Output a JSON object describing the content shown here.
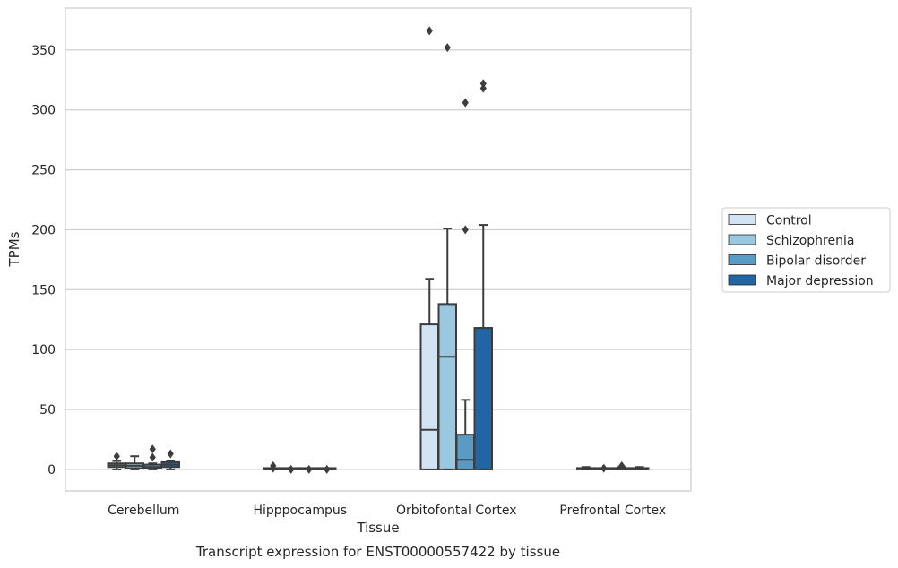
{
  "chart_data": {
    "type": "box",
    "title": "",
    "caption": "Transcript expression for ENST00000557422 by tissue",
    "xlabel": "Tissue",
    "ylabel": "TPMs",
    "ylim": [
      -18,
      385
    ],
    "yticks": [
      0,
      50,
      100,
      150,
      200,
      250,
      300,
      350
    ],
    "grid": "horizontal",
    "legend_position": "right",
    "categories": [
      "Cerebellum",
      "Hipppocampus",
      "Orbitofontal Cortex",
      "Prefrontal Cortex"
    ],
    "series": [
      {
        "name": "Control",
        "color": "#d2e3f3",
        "boxes": [
          {
            "q1": 2,
            "median": 3.5,
            "q3": 5,
            "whisker_low": 0,
            "whisker_high": 7,
            "outliers": [
              11
            ]
          },
          {
            "q1": 0,
            "median": 0,
            "q3": 0,
            "whisker_low": 0,
            "whisker_high": 0,
            "outliers": [
              1,
              3
            ]
          },
          {
            "q1": 0,
            "median": 33,
            "q3": 121,
            "whisker_low": 0,
            "whisker_high": 159,
            "outliers": [
              366
            ]
          },
          {
            "q1": 0,
            "median": 0.5,
            "q3": 1,
            "whisker_low": 0,
            "whisker_high": 2,
            "outliers": []
          }
        ]
      },
      {
        "name": "Schizophrenia",
        "color": "#9ac8e0",
        "boxes": [
          {
            "q1": 1,
            "median": 3,
            "q3": 5,
            "whisker_low": 0,
            "whisker_high": 11,
            "outliers": []
          },
          {
            "q1": 0,
            "median": 0,
            "q3": 0,
            "whisker_low": 0,
            "whisker_high": 0,
            "outliers": [
              0
            ]
          },
          {
            "q1": 0,
            "median": 94,
            "q3": 138,
            "whisker_low": 0,
            "whisker_high": 201,
            "outliers": [
              352
            ]
          },
          {
            "q1": 0,
            "median": 0,
            "q3": 1,
            "whisker_low": 0,
            "whisker_high": 1,
            "outliers": [
              1
            ]
          }
        ]
      },
      {
        "name": "Bipolar disorder",
        "color": "#5a9bc6",
        "boxes": [
          {
            "q1": 1,
            "median": 2,
            "q3": 4,
            "whisker_low": 0,
            "whisker_high": 5,
            "outliers": [
              10,
              17
            ]
          },
          {
            "q1": 0,
            "median": 0,
            "q3": 0,
            "whisker_low": 0,
            "whisker_high": 0,
            "outliers": [
              0
            ]
          },
          {
            "q1": 0,
            "median": 8,
            "q3": 29,
            "whisker_low": 0,
            "whisker_high": 58,
            "outliers": [
              200,
              306
            ]
          },
          {
            "q1": 0,
            "median": 0,
            "q3": 1,
            "whisker_low": 0,
            "whisker_high": 2,
            "outliers": [
              3
            ]
          }
        ]
      },
      {
        "name": "Major depression",
        "color": "#2265a5",
        "boxes": [
          {
            "q1": 2,
            "median": 4,
            "q3": 6,
            "whisker_low": 0,
            "whisker_high": 7,
            "outliers": [
              13
            ]
          },
          {
            "q1": 0,
            "median": 0,
            "q3": 0,
            "whisker_low": 0,
            "whisker_high": 0,
            "outliers": [
              0
            ]
          },
          {
            "q1": 0,
            "median": 118,
            "q3": 118,
            "whisker_low": 0,
            "whisker_high": 204,
            "outliers": [
              318,
              322
            ]
          },
          {
            "q1": 0,
            "median": 0,
            "q3": 1,
            "whisker_low": 0,
            "whisker_high": 2,
            "outliers": []
          }
        ]
      }
    ]
  }
}
